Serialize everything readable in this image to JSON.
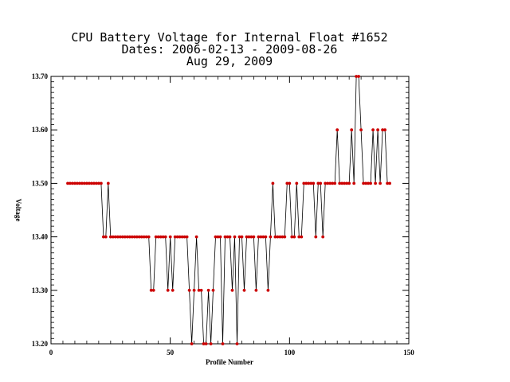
{
  "chart_data": {
    "type": "line",
    "title_lines": [
      "CPU Battery Voltage for Internal Float #1652",
      "Dates:  2006-02-13 -  2009-08-26",
      "Aug 29, 2009"
    ],
    "xlabel": "Profile Number",
    "ylabel": "Voltage",
    "xlim": [
      0,
      150
    ],
    "ylim": [
      13.2,
      13.7
    ],
    "x_ticks": [
      0,
      50,
      100,
      150
    ],
    "x_tick_labels": [
      "0",
      "50",
      "100",
      "150"
    ],
    "y_ticks": [
      13.2,
      13.3,
      13.4,
      13.5,
      13.6,
      13.7
    ],
    "y_tick_labels": [
      "13.20",
      "13.30",
      "13.40",
      "13.50",
      "13.60",
      "13.70"
    ],
    "grid": false,
    "line_color": "#000000",
    "marker_color": "#cc0000",
    "series": [
      {
        "x": [
          7,
          8,
          9,
          10,
          11,
          12,
          13,
          14,
          15,
          16,
          17,
          18,
          19,
          20,
          21,
          22,
          23,
          24,
          25,
          26,
          27,
          28,
          29,
          30,
          31,
          32,
          33,
          34,
          35,
          36,
          37,
          38,
          39,
          40,
          41,
          42,
          43,
          44,
          45,
          46,
          47,
          48,
          49,
          50,
          51,
          52,
          53,
          54,
          55,
          56,
          57,
          58,
          59,
          60,
          61,
          62,
          63,
          64,
          65,
          66,
          67,
          68,
          69,
          70,
          71,
          72,
          73,
          74,
          75,
          76,
          77,
          78,
          79,
          80,
          81,
          82,
          83,
          84,
          85,
          86,
          87,
          88,
          89,
          90,
          91,
          92,
          93,
          94,
          95,
          96,
          97,
          98,
          99,
          100,
          101,
          102,
          103,
          104,
          105,
          106,
          107,
          108,
          109,
          110,
          111,
          112,
          113,
          114,
          115,
          116,
          117,
          118,
          119,
          120,
          121,
          122,
          123,
          124,
          125,
          126,
          127,
          128,
          129,
          130,
          131,
          132,
          133,
          134,
          135,
          136,
          137,
          138,
          139,
          140,
          141,
          142
        ],
        "y": [
          13.5,
          13.5,
          13.5,
          13.5,
          13.5,
          13.5,
          13.5,
          13.5,
          13.5,
          13.5,
          13.5,
          13.5,
          13.5,
          13.5,
          13.5,
          13.4,
          13.4,
          13.5,
          13.4,
          13.4,
          13.4,
          13.4,
          13.4,
          13.4,
          13.4,
          13.4,
          13.4,
          13.4,
          13.4,
          13.4,
          13.4,
          13.4,
          13.4,
          13.4,
          13.4,
          13.3,
          13.3,
          13.4,
          13.4,
          13.4,
          13.4,
          13.4,
          13.3,
          13.4,
          13.3,
          13.4,
          13.4,
          13.4,
          13.4,
          13.4,
          13.4,
          13.3,
          13.2,
          13.3,
          13.4,
          13.3,
          13.3,
          13.2,
          13.2,
          13.3,
          13.2,
          13.3,
          13.4,
          13.4,
          13.4,
          13.2,
          13.4,
          13.4,
          13.4,
          13.3,
          13.4,
          13.2,
          13.4,
          13.4,
          13.3,
          13.4,
          13.4,
          13.4,
          13.4,
          13.3,
          13.4,
          13.4,
          13.4,
          13.4,
          13.3,
          13.4,
          13.5,
          13.4,
          13.4,
          13.4,
          13.4,
          13.4,
          13.5,
          13.5,
          13.4,
          13.4,
          13.5,
          13.4,
          13.4,
          13.5,
          13.5,
          13.5,
          13.5,
          13.5,
          13.4,
          13.5,
          13.5,
          13.4,
          13.5,
          13.5,
          13.5,
          13.5,
          13.5,
          13.6,
          13.5,
          13.5,
          13.5,
          13.5,
          13.5,
          13.6,
          13.5,
          13.7,
          13.7,
          13.6,
          13.5,
          13.5,
          13.5,
          13.5,
          13.6,
          13.5,
          13.6,
          13.5,
          13.6,
          13.6,
          13.5,
          13.5
        ]
      }
    ]
  }
}
